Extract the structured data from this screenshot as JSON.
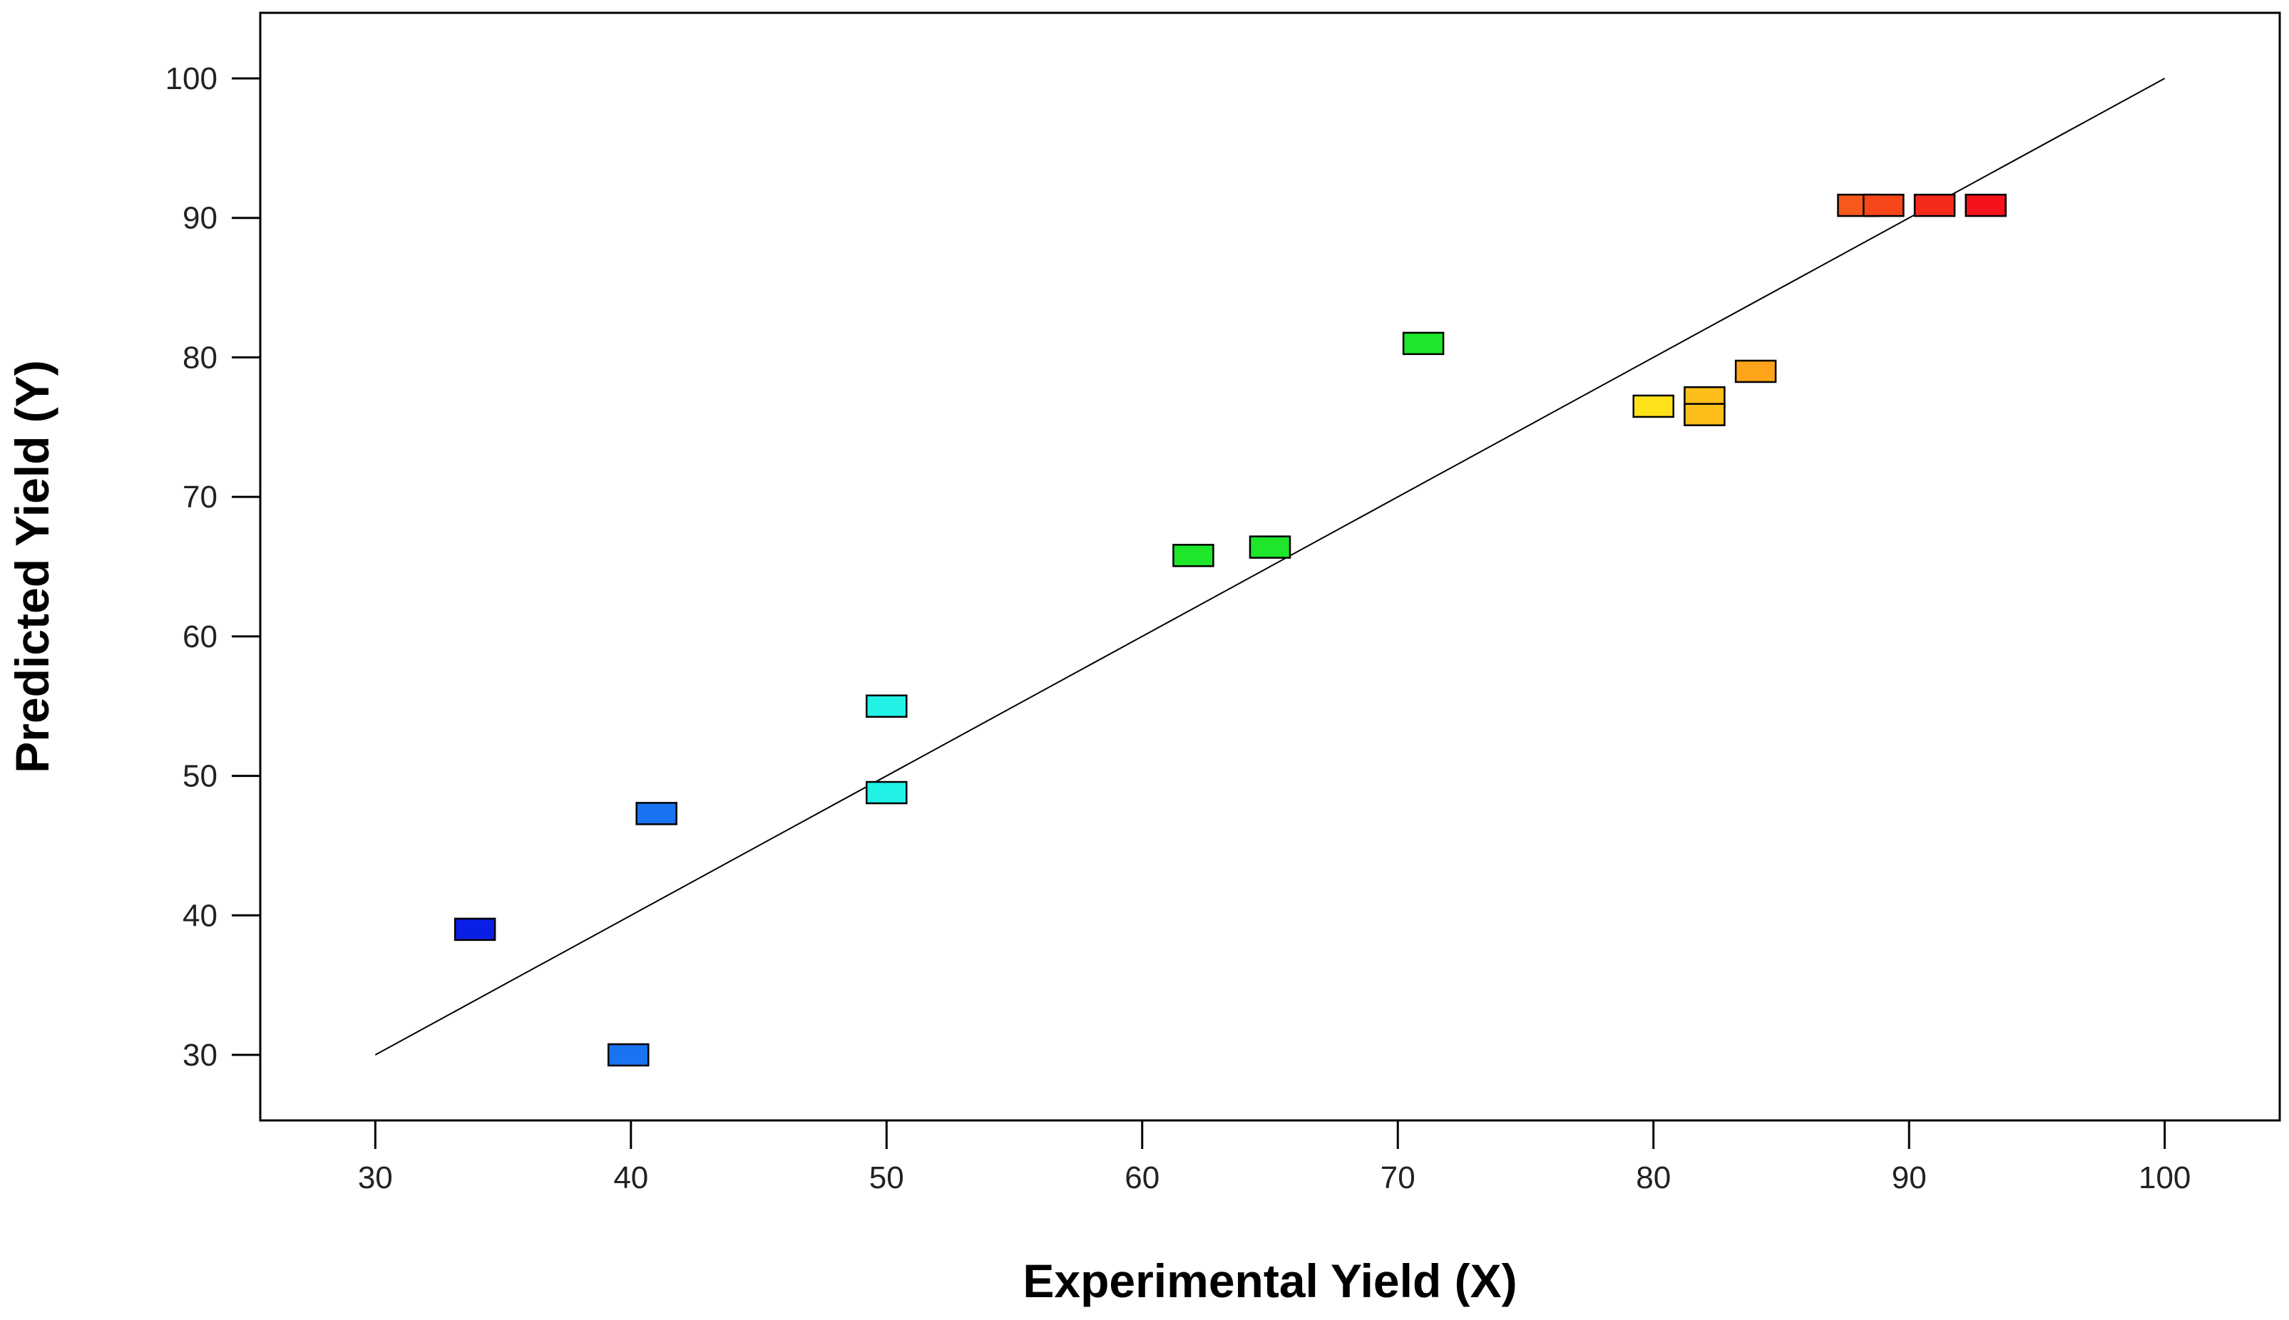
{
  "chart_data": {
    "type": "scatter",
    "xlabel": "Experimental Yield (X)",
    "ylabel": "Predicted Yield (Y)",
    "xlim": [
      25.5,
      104.5
    ],
    "ylim": [
      25.3,
      104.7
    ],
    "xticks": [
      30,
      40,
      50,
      60,
      70,
      80,
      90,
      100
    ],
    "yticks": [
      30,
      40,
      50,
      60,
      70,
      80,
      90,
      100
    ],
    "x_tick_labels": [
      "30",
      "40",
      "50",
      "60",
      "70",
      "80",
      "90",
      "100"
    ],
    "y_tick_labels": [
      "30",
      "40",
      "50",
      "60",
      "70",
      "80",
      "90",
      "100"
    ],
    "grid": false,
    "reference_line": {
      "from": [
        30,
        30
      ],
      "to": [
        100,
        100
      ],
      "color": "#000000"
    },
    "marker": "rectangle",
    "points": [
      {
        "x": 33.9,
        "y": 39.0,
        "color": "#0a1fe6"
      },
      {
        "x": 39.9,
        "y": 30.0,
        "color": "#1a73f0"
      },
      {
        "x": 41.0,
        "y": 47.3,
        "color": "#1a73f0"
      },
      {
        "x": 50.0,
        "y": 55.0,
        "color": "#22f2e6"
      },
      {
        "x": 50.0,
        "y": 48.8,
        "color": "#22f2e6"
      },
      {
        "x": 62.0,
        "y": 65.8,
        "color": "#1ee62a"
      },
      {
        "x": 65.0,
        "y": 66.4,
        "color": "#1ee62a"
      },
      {
        "x": 71.0,
        "y": 81.0,
        "color": "#1ee62a"
      },
      {
        "x": 80.0,
        "y": 76.5,
        "color": "#fde21a"
      },
      {
        "x": 82.0,
        "y": 77.1,
        "color": "#fdbe1a"
      },
      {
        "x": 82.0,
        "y": 75.9,
        "color": "#fdbe1a"
      },
      {
        "x": 84.0,
        "y": 79.0,
        "color": "#fda41a"
      },
      {
        "x": 88.0,
        "y": 90.9,
        "color": "#f6591a"
      },
      {
        "x": 89.0,
        "y": 90.9,
        "color": "#f6461a"
      },
      {
        "x": 91.0,
        "y": 90.9,
        "color": "#f52a1a"
      },
      {
        "x": 93.0,
        "y": 90.9,
        "color": "#f5121a"
      }
    ]
  }
}
